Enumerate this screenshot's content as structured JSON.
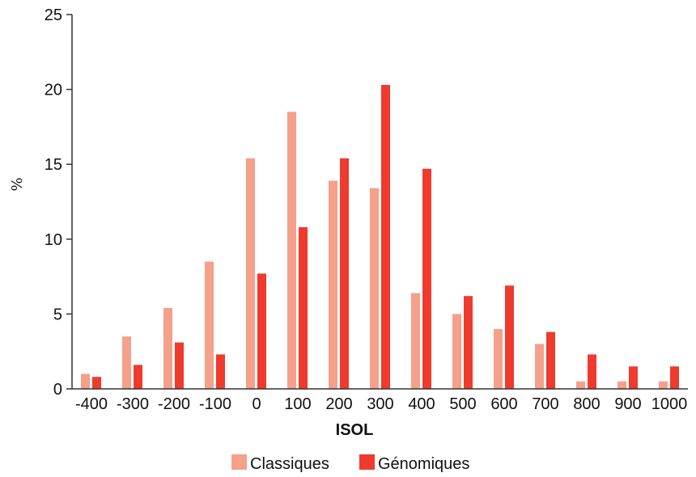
{
  "chart_data": {
    "type": "bar",
    "xlabel": "ISOL",
    "ylabel": "%",
    "ylim": [
      0,
      25
    ],
    "yticks": [
      0,
      5,
      10,
      15,
      20,
      25
    ],
    "categories": [
      "-400",
      "-300",
      "-200",
      "-100",
      "0",
      "100",
      "200",
      "300",
      "400",
      "500",
      "600",
      "700",
      "800",
      "900",
      "1000"
    ],
    "series": [
      {
        "name": "Classiques",
        "color": "#f4a08a",
        "values": [
          1.0,
          3.5,
          5.4,
          8.5,
          15.4,
          18.5,
          13.9,
          13.4,
          6.4,
          5.0,
          4.0,
          3.0,
          0.5,
          0.5,
          0.5
        ]
      },
      {
        "name": "Génomiques",
        "color": "#ef3a2e",
        "values": [
          0.8,
          1.6,
          3.1,
          2.3,
          7.7,
          10.8,
          15.4,
          20.3,
          14.7,
          6.2,
          6.9,
          3.8,
          2.3,
          1.5,
          1.5
        ]
      }
    ],
    "legend": "bottom-center",
    "grid": false
  }
}
